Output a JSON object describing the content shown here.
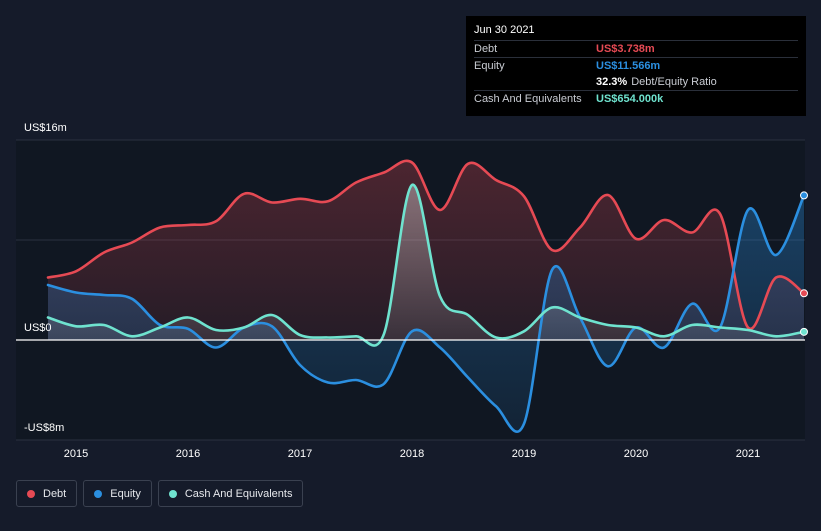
{
  "tooltip": {
    "date": "Jun 30 2021",
    "debt_label": "Debt",
    "debt_value": "US$3.738m",
    "equity_label": "Equity",
    "equity_value": "US$11.566m",
    "ratio_value": "32.3%",
    "ratio_label": "Debt/Equity Ratio",
    "cash_label": "Cash And Equivalents",
    "cash_value": "US$654.000k"
  },
  "legend": {
    "debt": "Debt",
    "equity": "Equity",
    "cash": "Cash And Equivalents"
  },
  "colors": {
    "debt": "#e64a54",
    "equity": "#2b8fe0",
    "cash": "#6fe3cf",
    "background": "#151b2a",
    "plot_background": "#101722"
  },
  "chart_data": {
    "type": "area",
    "title": "Debt/Equity history",
    "xlabel": "",
    "ylabel": "",
    "xlim": [
      2014.75,
      2021.5
    ],
    "ylim": [
      -8,
      16
    ],
    "y_tick_labels": [
      {
        "value": 16,
        "label": "US$16m"
      },
      {
        "value": 0,
        "label": "US$0"
      },
      {
        "value": -8,
        "label": "-US$8m"
      }
    ],
    "x_ticks": [
      {
        "value": 2015,
        "label": "2015"
      },
      {
        "value": 2016,
        "label": "2016"
      },
      {
        "value": 2017,
        "label": "2017"
      },
      {
        "value": 2018,
        "label": "2018"
      },
      {
        "value": 2019,
        "label": "2019"
      },
      {
        "value": 2020,
        "label": "2020"
      },
      {
        "value": 2021,
        "label": "2021"
      }
    ],
    "series": [
      {
        "name": "Debt",
        "key": "debt",
        "points": [
          [
            2014.75,
            5.0
          ],
          [
            2015.0,
            5.5
          ],
          [
            2015.25,
            7.0
          ],
          [
            2015.5,
            7.8
          ],
          [
            2015.75,
            9.0
          ],
          [
            2016.0,
            9.2
          ],
          [
            2016.25,
            9.5
          ],
          [
            2016.5,
            11.7
          ],
          [
            2016.75,
            11.0
          ],
          [
            2017.0,
            11.3
          ],
          [
            2017.25,
            11.1
          ],
          [
            2017.5,
            12.6
          ],
          [
            2017.75,
            13.4
          ],
          [
            2018.0,
            14.2
          ],
          [
            2018.25,
            10.4
          ],
          [
            2018.5,
            14.1
          ],
          [
            2018.75,
            12.8
          ],
          [
            2019.0,
            11.5
          ],
          [
            2019.25,
            7.2
          ],
          [
            2019.5,
            9.0
          ],
          [
            2019.75,
            11.6
          ],
          [
            2020.0,
            8.1
          ],
          [
            2020.25,
            9.6
          ],
          [
            2020.5,
            8.6
          ],
          [
            2020.75,
            10.1
          ],
          [
            2021.0,
            1.0
          ],
          [
            2021.25,
            5.0
          ],
          [
            2021.5,
            3.738
          ]
        ]
      },
      {
        "name": "Equity",
        "key": "equity",
        "points": [
          [
            2014.75,
            4.4
          ],
          [
            2015.0,
            3.8
          ],
          [
            2015.25,
            3.6
          ],
          [
            2015.5,
            3.3
          ],
          [
            2015.75,
            1.2
          ],
          [
            2016.0,
            0.9
          ],
          [
            2016.25,
            -0.6
          ],
          [
            2016.5,
            1.0
          ],
          [
            2016.75,
            1.1
          ],
          [
            2017.0,
            -2.0
          ],
          [
            2017.25,
            -3.4
          ],
          [
            2017.5,
            -3.2
          ],
          [
            2017.75,
            -3.5
          ],
          [
            2018.0,
            0.7
          ],
          [
            2018.25,
            -0.6
          ],
          [
            2018.5,
            -3.0
          ],
          [
            2018.75,
            -5.3
          ],
          [
            2019.0,
            -6.7
          ],
          [
            2019.25,
            5.6
          ],
          [
            2019.5,
            1.8
          ],
          [
            2019.75,
            -2.1
          ],
          [
            2020.0,
            1.0
          ],
          [
            2020.25,
            -0.6
          ],
          [
            2020.5,
            2.9
          ],
          [
            2020.75,
            1.0
          ],
          [
            2021.0,
            10.4
          ],
          [
            2021.25,
            6.8
          ],
          [
            2021.5,
            11.566
          ]
        ]
      },
      {
        "name": "Cash And Equivalents",
        "key": "cash",
        "points": [
          [
            2014.75,
            1.8
          ],
          [
            2015.0,
            1.1
          ],
          [
            2015.25,
            1.2
          ],
          [
            2015.5,
            0.3
          ],
          [
            2015.75,
            1.0
          ],
          [
            2016.0,
            1.8
          ],
          [
            2016.25,
            0.8
          ],
          [
            2016.5,
            1.0
          ],
          [
            2016.75,
            2.0
          ],
          [
            2017.0,
            0.4
          ],
          [
            2017.25,
            0.2
          ],
          [
            2017.5,
            0.3
          ],
          [
            2017.75,
            0.5
          ],
          [
            2018.0,
            12.4
          ],
          [
            2018.25,
            3.5
          ],
          [
            2018.5,
            2.0
          ],
          [
            2018.75,
            0.2
          ],
          [
            2019.0,
            0.7
          ],
          [
            2019.25,
            2.6
          ],
          [
            2019.5,
            1.8
          ],
          [
            2019.75,
            1.2
          ],
          [
            2020.0,
            1.0
          ],
          [
            2020.25,
            0.3
          ],
          [
            2020.5,
            1.2
          ],
          [
            2020.75,
            1.0
          ],
          [
            2021.0,
            0.8
          ],
          [
            2021.25,
            0.3
          ],
          [
            2021.5,
            0.654
          ]
        ]
      }
    ]
  }
}
